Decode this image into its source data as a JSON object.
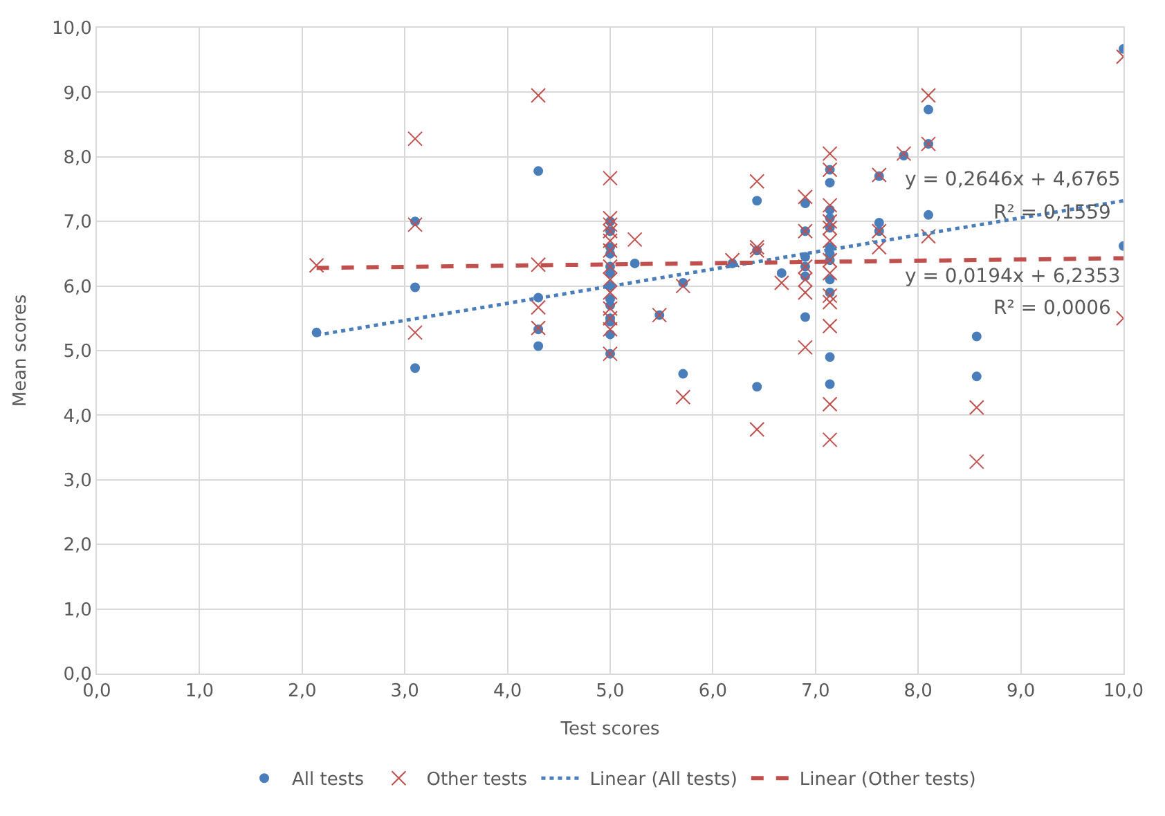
{
  "chart_data": {
    "type": "scatter",
    "xlabel": "Test scores",
    "ylabel": "Mean scores",
    "xlim": [
      0,
      10
    ],
    "ylim": [
      0,
      10
    ],
    "xticks": [
      {
        "value": 0,
        "label": "0,0"
      },
      {
        "value": 1,
        "label": "1,0"
      },
      {
        "value": 2,
        "label": "2,0"
      },
      {
        "value": 3,
        "label": "3,0"
      },
      {
        "value": 4,
        "label": "4,0"
      },
      {
        "value": 5,
        "label": "5,0"
      },
      {
        "value": 6,
        "label": "6,0"
      },
      {
        "value": 7,
        "label": "7,0"
      },
      {
        "value": 8,
        "label": "8,0"
      },
      {
        "value": 9,
        "label": "9,0"
      },
      {
        "value": 10,
        "label": "10,0"
      }
    ],
    "yticks": [
      {
        "value": 0,
        "label": "0,0"
      },
      {
        "value": 1,
        "label": "1,0"
      },
      {
        "value": 2,
        "label": "2,0"
      },
      {
        "value": 3,
        "label": "3,0"
      },
      {
        "value": 4,
        "label": "4,0"
      },
      {
        "value": 5,
        "label": "5,0"
      },
      {
        "value": 6,
        "label": "6,0"
      },
      {
        "value": 7,
        "label": "7,0"
      },
      {
        "value": 8,
        "label": "8,0"
      },
      {
        "value": 9,
        "label": "9,0"
      },
      {
        "value": 10,
        "label": "10,0"
      }
    ],
    "grid": true,
    "legend": "bottom",
    "series": [
      {
        "name": "All tests",
        "marker": "circle",
        "color": "#4a7ebb",
        "x": [
          2.14,
          3.1,
          3.1,
          3.1,
          4.3,
          4.3,
          4.3,
          4.3,
          5,
          5,
          5,
          5,
          5,
          5,
          5,
          5,
          5,
          5,
          5,
          5,
          5,
          5.24,
          5.48,
          5.71,
          5.71,
          6.19,
          6.43,
          6.43,
          6.43,
          6.67,
          6.9,
          6.9,
          6.9,
          6.9,
          6.9,
          6.9,
          7.14,
          7.14,
          7.14,
          7.14,
          7.14,
          7.14,
          7.14,
          7.14,
          7.14,
          7.14,
          7.14,
          7.14,
          7.62,
          7.62,
          7.62,
          7.86,
          8.1,
          8.1,
          8.1,
          8.57,
          8.57,
          10,
          10
        ],
        "values": [
          5.28,
          7.0,
          5.98,
          4.73,
          7.78,
          5.82,
          5.33,
          5.07,
          7.0,
          6.85,
          6.6,
          6.5,
          6.3,
          6.2,
          6.0,
          5.8,
          5.7,
          5.5,
          5.45,
          5.25,
          4.95,
          6.35,
          5.55,
          6.05,
          4.64,
          6.35,
          7.32,
          6.55,
          4.44,
          6.2,
          7.28,
          6.85,
          6.45,
          6.3,
          6.15,
          5.52,
          7.8,
          7.6,
          7.18,
          7.05,
          6.9,
          6.6,
          6.5,
          6.4,
          6.1,
          5.9,
          4.9,
          4.48,
          7.7,
          6.98,
          6.85,
          8.02,
          8.73,
          8.2,
          7.1,
          5.22,
          4.6,
          9.67,
          6.62
        ]
      },
      {
        "name": "Other tests",
        "marker": "cross",
        "color": "#c0504d",
        "x": [
          2.14,
          3.1,
          3.1,
          3.1,
          4.3,
          4.3,
          4.3,
          4.3,
          5,
          5,
          5,
          5,
          5,
          5,
          5,
          5,
          5,
          5,
          5,
          5,
          5,
          5.24,
          5.48,
          5.71,
          5.71,
          6.19,
          6.43,
          6.43,
          6.43,
          6.43,
          6.67,
          6.9,
          6.9,
          6.9,
          6.9,
          6.9,
          6.9,
          7.14,
          7.14,
          7.14,
          7.14,
          7.14,
          7.14,
          7.14,
          7.14,
          7.14,
          7.14,
          7.14,
          7.14,
          7.14,
          7.62,
          7.62,
          7.62,
          7.86,
          8.1,
          8.1,
          8.1,
          8.57,
          8.57,
          10,
          10
        ],
        "values": [
          6.32,
          8.28,
          6.95,
          5.28,
          8.95,
          6.33,
          5.67,
          5.35,
          7.67,
          7.05,
          6.95,
          6.85,
          6.7,
          6.55,
          6.3,
          6.1,
          5.9,
          5.65,
          5.5,
          5.33,
          4.95,
          6.72,
          5.55,
          6.0,
          4.28,
          6.4,
          7.62,
          6.6,
          6.55,
          3.78,
          6.05,
          7.38,
          6.85,
          6.3,
          6.1,
          5.9,
          5.05,
          8.05,
          7.8,
          7.25,
          7.0,
          6.9,
          6.7,
          6.4,
          6.2,
          5.85,
          5.75,
          5.38,
          4.17,
          3.62,
          7.72,
          6.85,
          6.6,
          8.05,
          8.95,
          8.2,
          6.77,
          4.12,
          3.28,
          9.55,
          5.5
        ]
      },
      {
        "name": "Linear (All tests)",
        "type": "line",
        "line_style": "dotted",
        "color": "#4a7ebb",
        "x": [
          2.14,
          10
        ],
        "values": [
          5.24,
          7.32
        ]
      },
      {
        "name": "Linear (Other tests)",
        "type": "line",
        "line_style": "dashed",
        "color": "#c0504d",
        "x": [
          2.14,
          10
        ],
        "values": [
          6.28,
          6.43
        ]
      }
    ],
    "annotations": [
      "y = 0,2646x + 4,6765",
      "R² = 0,1559",
      "y = 0,0194x + 6,2353",
      "R² = 0,0006"
    ]
  }
}
